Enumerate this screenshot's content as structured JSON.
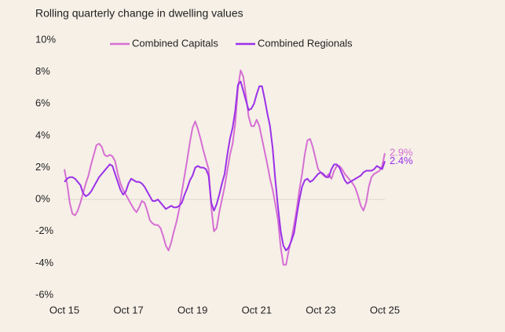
{
  "chart_data": {
    "type": "line",
    "title": "Rolling quarterly change in dwelling values",
    "categories": [
      "Oct 15",
      null,
      null,
      null,
      null,
      null,
      null,
      null,
      null,
      null,
      null,
      null,
      null,
      null,
      null,
      null,
      null,
      null,
      null,
      null,
      null,
      null,
      null,
      null,
      "Oct 17",
      null,
      null,
      null,
      null,
      null,
      null,
      null,
      null,
      null,
      null,
      null,
      null,
      null,
      null,
      null,
      null,
      null,
      null,
      null,
      null,
      null,
      null,
      null,
      "Oct 19",
      null,
      null,
      null,
      null,
      null,
      null,
      null,
      null,
      null,
      null,
      null,
      null,
      null,
      null,
      null,
      null,
      null,
      null,
      null,
      null,
      null,
      null,
      null,
      "Oct 21",
      null,
      null,
      null,
      null,
      null,
      null,
      null,
      null,
      null,
      null,
      null,
      null,
      null,
      null,
      null,
      null,
      null,
      null,
      null,
      null,
      null,
      null,
      null,
      "Oct 23",
      null,
      null,
      null,
      null,
      null,
      null,
      null,
      null,
      null,
      null,
      null,
      null,
      null,
      null,
      null,
      null,
      null,
      null,
      null,
      null,
      null,
      null,
      null,
      "Oct 25"
    ],
    "series": [
      {
        "name": "Combined Capitals",
        "color": "#d66fd3",
        "values": [
          1.9,
          1.0,
          -0.2,
          -0.9,
          -1.0,
          -0.7,
          -0.2,
          0.4,
          1.0,
          1.5,
          2.2,
          2.8,
          3.4,
          3.5,
          3.3,
          2.8,
          2.7,
          2.8,
          2.7,
          2.4,
          1.6,
          1.0,
          0.6,
          0.3,
          0.0,
          -0.3,
          -0.6,
          -0.8,
          -0.5,
          -0.1,
          -0.2,
          -0.7,
          -1.3,
          -1.5,
          -1.6,
          -1.6,
          -1.8,
          -2.3,
          -2.9,
          -3.2,
          -2.7,
          -2.0,
          -1.4,
          -0.6,
          0.5,
          1.5,
          2.5,
          3.6,
          4.5,
          4.9,
          4.4,
          3.8,
          3.1,
          2.5,
          1.9,
          -0.5,
          -2.0,
          -1.8,
          -0.8,
          0.0,
          0.8,
          1.8,
          2.8,
          3.5,
          4.8,
          7.0,
          8.1,
          7.7,
          6.5,
          5.2,
          4.6,
          4.6,
          5.0,
          4.6,
          3.8,
          3.0,
          2.2,
          1.3,
          0.6,
          -0.3,
          -1.3,
          -3.0,
          -4.1,
          -4.1,
          -3.2,
          -2.5,
          -1.6,
          -0.6,
          0.6,
          1.6,
          2.8,
          3.7,
          3.8,
          3.3,
          2.6,
          1.9,
          1.7,
          1.5,
          1.4,
          1.6,
          1.3,
          1.8,
          2.1,
          2.1,
          1.9,
          1.6,
          1.4,
          1.2,
          1.0,
          0.7,
          0.2,
          -0.4,
          -0.7,
          -0.2,
          0.8,
          1.4,
          1.6,
          1.7,
          1.8,
          2.1,
          2.9
        ],
        "value_labels": [
          null,
          null,
          null,
          null,
          null,
          null,
          null,
          null,
          null,
          null,
          null,
          null,
          null,
          null,
          null,
          null,
          null,
          null,
          null,
          null,
          null,
          null,
          null,
          null,
          null,
          null,
          null,
          null,
          null,
          null,
          null,
          null,
          null,
          null,
          null,
          null,
          null,
          null,
          null,
          null,
          null,
          null,
          null,
          null,
          null,
          null,
          null,
          null,
          null,
          null,
          null,
          null,
          null,
          null,
          null,
          null,
          null,
          null,
          null,
          null,
          null,
          null,
          null,
          null,
          null,
          null,
          null,
          null,
          null,
          null,
          null,
          null,
          null,
          null,
          null,
          null,
          null,
          null,
          null,
          null,
          null,
          null,
          null,
          null,
          null,
          null,
          null,
          null,
          null,
          null,
          null,
          null,
          null,
          null,
          null,
          null,
          null,
          null,
          null,
          null,
          null,
          null,
          null,
          null,
          null,
          null,
          null,
          null,
          null,
          null,
          null,
          null,
          null,
          null,
          null,
          null,
          null,
          null,
          null,
          null,
          "2.9%"
        ]
      },
      {
        "name": "Combined Regionals",
        "color": "#9b30e8",
        "values": [
          1.1,
          1.3,
          1.4,
          1.4,
          1.3,
          1.1,
          0.9,
          0.4,
          0.2,
          0.3,
          0.5,
          0.8,
          1.1,
          1.4,
          1.6,
          1.8,
          2.0,
          2.2,
          2.1,
          1.6,
          1.1,
          0.6,
          0.3,
          0.5,
          1.0,
          1.3,
          1.2,
          1.1,
          1.1,
          1.0,
          0.8,
          0.5,
          0.2,
          -0.1,
          -0.1,
          0.0,
          -0.2,
          -0.4,
          -0.6,
          -0.5,
          -0.4,
          -0.5,
          -0.5,
          -0.4,
          -0.2,
          0.3,
          0.7,
          1.2,
          1.5,
          2.0,
          2.1,
          2.0,
          2.0,
          1.9,
          1.5,
          -0.2,
          -0.7,
          -0.3,
          0.3,
          1.0,
          1.6,
          2.8,
          3.8,
          4.5,
          5.6,
          7.2,
          7.4,
          6.8,
          6.2,
          5.6,
          5.7,
          6.0,
          6.6,
          7.1,
          7.1,
          6.3,
          5.4,
          4.6,
          3.2,
          1.2,
          -0.5,
          -2.0,
          -2.9,
          -3.2,
          -3.0,
          -2.6,
          -2.1,
          -1.0,
          0.0,
          0.8,
          1.2,
          1.3,
          1.1,
          1.2,
          1.4,
          1.6,
          1.7,
          1.6,
          1.4,
          1.4,
          1.9,
          2.2,
          2.2,
          2.0,
          1.6,
          1.2,
          1.0,
          1.1,
          1.2,
          1.3,
          1.4,
          1.5,
          1.7,
          1.8,
          1.8,
          1.8,
          1.9,
          2.1,
          2.0,
          1.9,
          2.4
        ],
        "value_labels": [
          null,
          null,
          null,
          null,
          null,
          null,
          null,
          null,
          null,
          null,
          null,
          null,
          null,
          null,
          null,
          null,
          null,
          null,
          null,
          null,
          null,
          null,
          null,
          null,
          null,
          null,
          null,
          null,
          null,
          null,
          null,
          null,
          null,
          null,
          null,
          null,
          null,
          null,
          null,
          null,
          null,
          null,
          null,
          null,
          null,
          null,
          null,
          null,
          null,
          null,
          null,
          null,
          null,
          null,
          null,
          null,
          null,
          null,
          null,
          null,
          null,
          null,
          null,
          null,
          null,
          null,
          null,
          null,
          null,
          null,
          null,
          null,
          null,
          null,
          null,
          null,
          null,
          null,
          null,
          null,
          null,
          null,
          null,
          null,
          null,
          null,
          null,
          null,
          null,
          null,
          null,
          null,
          null,
          null,
          null,
          null,
          null,
          null,
          null,
          null,
          null,
          null,
          null,
          null,
          null,
          null,
          null,
          null,
          null,
          null,
          null,
          null,
          null,
          null,
          null,
          null,
          null,
          null,
          null,
          null,
          "2.4%"
        ]
      }
    ],
    "ylim": [
      -6,
      10
    ],
    "yticks": [
      {
        "value": -6,
        "label": "-6%"
      },
      {
        "value": -4,
        "label": "-4%"
      },
      {
        "value": -2,
        "label": "-2%"
      },
      {
        "value": 0,
        "label": "0%"
      },
      {
        "value": 2,
        "label": "2%"
      },
      {
        "value": 4,
        "label": "4%"
      },
      {
        "value": 6,
        "label": "6%"
      },
      {
        "value": 8,
        "label": "8%"
      },
      {
        "value": 10,
        "label": "10%"
      }
    ],
    "zero_line": true,
    "legend": "top"
  }
}
